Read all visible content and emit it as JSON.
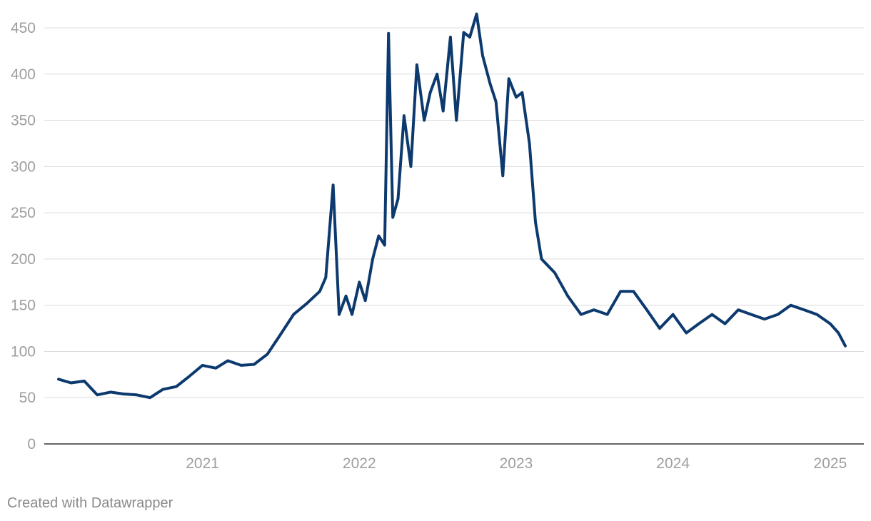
{
  "chart_data": {
    "type": "line",
    "title": "",
    "xlabel": "",
    "ylabel": "",
    "ylim": [
      0,
      450
    ],
    "y_ticks": [
      0,
      50,
      100,
      150,
      200,
      250,
      300,
      350,
      400,
      450
    ],
    "x_ticks": [
      "2021",
      "2022",
      "2023",
      "2024",
      "2025"
    ],
    "xlim": [
      "2020-02-01",
      "2025-02-15"
    ],
    "grid": true,
    "colors": {
      "series": "#0d3a6e",
      "grid": "#dcdcdc",
      "axis": "#333333",
      "ticks": "#9e9e9e"
    },
    "series": [
      {
        "x": [
          "2020-02-01",
          "2020-03-01",
          "2020-04-01",
          "2020-05-01",
          "2020-06-01",
          "2020-07-01",
          "2020-08-01",
          "2020-09-01",
          "2020-10-01",
          "2020-11-01",
          "2020-12-01",
          "2021-01-01",
          "2021-02-01",
          "2021-03-01",
          "2021-04-01",
          "2021-05-01",
          "2021-06-01",
          "2021-07-01",
          "2021-08-01",
          "2021-09-01",
          "2021-10-01",
          "2021-10-15",
          "2021-11-01",
          "2021-11-15",
          "2021-12-01",
          "2021-12-15",
          "2022-01-01",
          "2022-01-15",
          "2022-02-01",
          "2022-02-15",
          "2022-03-01",
          "2022-03-10",
          "2022-03-20",
          "2022-04-01",
          "2022-04-15",
          "2022-05-01",
          "2022-05-15",
          "2022-06-01",
          "2022-06-15",
          "2022-07-01",
          "2022-07-15",
          "2022-08-01",
          "2022-08-15",
          "2022-09-01",
          "2022-09-15",
          "2022-10-01",
          "2022-10-15",
          "2022-11-01",
          "2022-11-15",
          "2022-12-01",
          "2022-12-15",
          "2023-01-01",
          "2023-01-15",
          "2023-02-01",
          "2023-02-15",
          "2023-03-01",
          "2023-04-01",
          "2023-05-01",
          "2023-06-01",
          "2023-07-01",
          "2023-08-01",
          "2023-09-01",
          "2023-10-01",
          "2023-11-01",
          "2023-12-01",
          "2024-01-01",
          "2024-02-01",
          "2024-03-01",
          "2024-04-01",
          "2024-05-01",
          "2024-06-01",
          "2024-07-01",
          "2024-08-01",
          "2024-09-01",
          "2024-10-01",
          "2024-11-01",
          "2024-12-01",
          "2025-01-01",
          "2025-01-20",
          "2025-02-05"
        ],
        "y": [
          70,
          66,
          68,
          53,
          56,
          54,
          53,
          50,
          59,
          62,
          73,
          85,
          82,
          90,
          85,
          86,
          97,
          118,
          140,
          152,
          165,
          180,
          280,
          140,
          160,
          140,
          175,
          155,
          200,
          225,
          215,
          444,
          245,
          265,
          355,
          300,
          410,
          350,
          380,
          400,
          360,
          440,
          350,
          445,
          440,
          465,
          420,
          390,
          370,
          290,
          395,
          375,
          380,
          325,
          240,
          200,
          185,
          160,
          140,
          145,
          140,
          165,
          165,
          145,
          125,
          140,
          120,
          130,
          140,
          130,
          145,
          140,
          135,
          140,
          150,
          145,
          140,
          130,
          120,
          106
        ]
      }
    ],
    "credit": "Created with Datawrapper"
  }
}
